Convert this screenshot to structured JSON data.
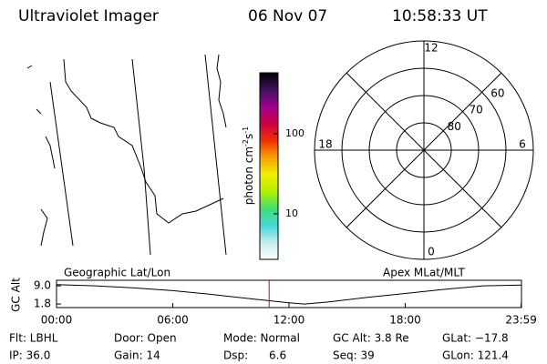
{
  "header": {
    "title": "Ultraviolet Imager",
    "date": "06 Nov 07",
    "time": "10:58:33 UT"
  },
  "chart_data": [
    {
      "type": "colorbar",
      "label": [
        "photon cm",
        "-2",
        "s",
        "-1"
      ],
      "log": true,
      "ylim": [
        2.7,
        575
      ],
      "yticks": [
        10,
        100
      ],
      "colors": [
        "#ffffff",
        "#c8ecec",
        "#40d8d8",
        "#40e070",
        "#b0f000",
        "#f0f000",
        "#f8a000",
        "#f03000",
        "#d00040",
        "#a00090",
        "#401060",
        "#000000"
      ]
    },
    {
      "type": "polar",
      "rlim": [
        90,
        50
      ],
      "rticks": [
        80,
        70,
        60
      ],
      "thetaticks": [
        0,
        6,
        12,
        18
      ]
    },
    {
      "type": "line",
      "ylabel": "GC Alt",
      "left_label": "Geographic Lat/Lon",
      "right_label": "Apex MLat/MLT",
      "xlim": [
        0,
        24
      ],
      "ylim": [
        0.4,
        11.2
      ],
      "xticks": [
        {
          "value": 0,
          "label": "00:00"
        },
        {
          "value": 6,
          "label": "06:00"
        },
        {
          "value": 12,
          "label": "12:00"
        },
        {
          "value": 18,
          "label": "18:00"
        },
        {
          "value": 23.983,
          "label": "23:59"
        }
      ],
      "yticks": [
        {
          "value": 9.0,
          "label": "9.0"
        },
        1.8
      ],
      "x": [
        0,
        2,
        4,
        6,
        8,
        10,
        12,
        12.8,
        14,
        16,
        18,
        20,
        22,
        24
      ],
      "series": [
        {
          "color": "#000000",
          "values": [
            9.5,
            9.0,
            8.2,
            7.1,
            5.6,
            3.9,
            2.3,
            1.8,
            2.6,
            4.4,
            6.0,
            7.6,
            9.0,
            9.3
          ]
        }
      ],
      "marker_x": 10.975,
      "marker_color": "#e00000"
    }
  ],
  "footer": {
    "rows": [
      [
        "Flt: LBHL",
        "Door: Open",
        "Mode: Normal",
        "GC Alt: 3.8 Re",
        "GLat: −17.8"
      ],
      [
        "IP: 36.0",
        "Gain: 14",
        "Dsp:      6.6",
        "Seq: 39",
        "GLon: 121.4"
      ]
    ]
  }
}
